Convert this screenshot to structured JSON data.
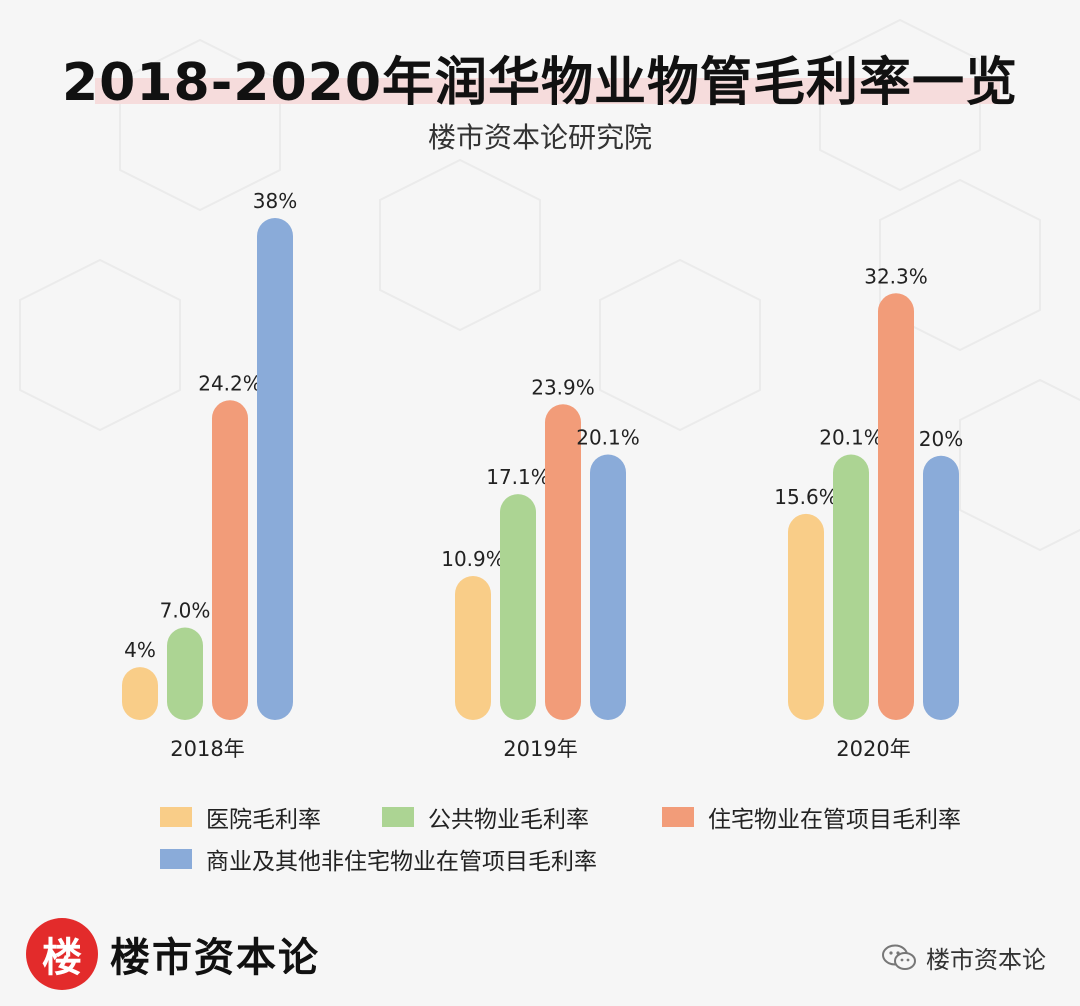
{
  "header": {
    "title": "2018-2020年润华物业物管毛利率一览",
    "subtitle": "楼市资本论研究院"
  },
  "chart_data": {
    "type": "bar",
    "categories": [
      "2018年",
      "2019年",
      "2020年"
    ],
    "series": [
      {
        "name": "医院毛利率",
        "color": "#f9cd88",
        "values": [
          4,
          10.9,
          15.6
        ],
        "labels": [
          "4%",
          "10.9%",
          "15.6%"
        ]
      },
      {
        "name": "公共物业毛利率",
        "color": "#acd493",
        "values": [
          7.0,
          17.1,
          20.1
        ],
        "labels": [
          "7.0%",
          "17.1%",
          "20.1%"
        ]
      },
      {
        "name": "住宅物业在管项目毛利率",
        "color": "#f29c79",
        "values": [
          24.2,
          23.9,
          32.3
        ],
        "labels": [
          "24.2%",
          "23.9%",
          "32.3%"
        ]
      },
      {
        "name": "商业及其他非住宅物业在管项目毛利率",
        "color": "#8aabd9",
        "values": [
          38,
          20.1,
          20
        ],
        "labels": [
          "38%",
          "20.1%",
          "20%"
        ]
      }
    ],
    "ylim": [
      0,
      38
    ],
    "grid": false,
    "legend_position": "bottom"
  },
  "branding": {
    "badge_char": "楼",
    "name": "楼市资本论",
    "wechat_name": "楼市资本论"
  },
  "icons": {
    "wechat": "wechat-icon"
  }
}
